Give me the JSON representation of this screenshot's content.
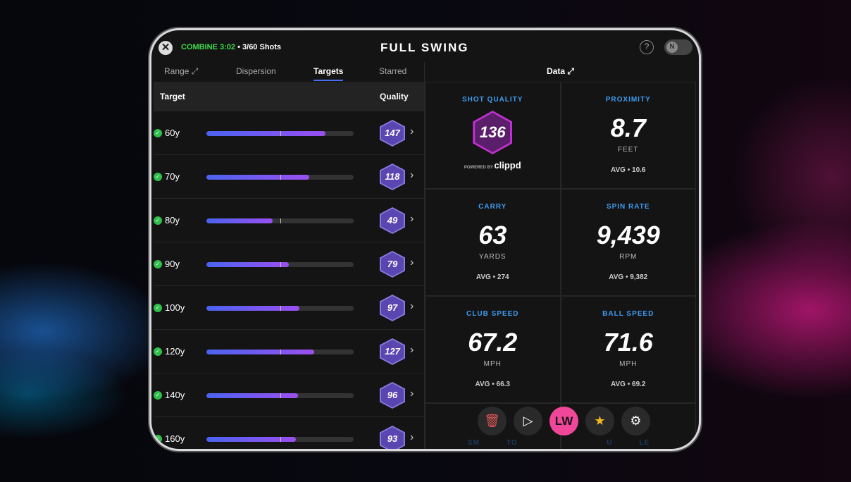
{
  "header": {
    "combine_label": "COMBINE",
    "timer": "3:02",
    "shots": "• 3/60 Shots",
    "logo": "FULL SWING",
    "help": "?",
    "toggle": "N"
  },
  "tabs": [
    {
      "label": "Range ⤢"
    },
    {
      "label": "Dispersion"
    },
    {
      "label": "Targets"
    },
    {
      "label": "Starred"
    }
  ],
  "table": {
    "col_target": "Target",
    "col_quality": "Quality",
    "rows": [
      {
        "target": "60y",
        "progress": 0.81,
        "quality": "147"
      },
      {
        "target": "70y",
        "progress": 0.7,
        "quality": "118"
      },
      {
        "target": "80y",
        "progress": 0.45,
        "quality": "49"
      },
      {
        "target": "90y",
        "progress": 0.56,
        "quality": "79"
      },
      {
        "target": "100y",
        "progress": 0.63,
        "quality": "97"
      },
      {
        "target": "120y",
        "progress": 0.73,
        "quality": "127"
      },
      {
        "target": "140y",
        "progress": 0.62,
        "quality": "96"
      },
      {
        "target": "160y",
        "progress": 0.61,
        "quality": "93"
      }
    ]
  },
  "data_panel": {
    "title": "Data ⤢",
    "shot_quality": {
      "label": "SHOT QUALITY",
      "value": "136",
      "powered": "POWERED BY",
      "brand": "clippd"
    },
    "metrics": [
      {
        "label": "PROXIMITY",
        "value": "8.7",
        "unit": "FEET",
        "avg": "AVG • 10.6"
      },
      {
        "label": "CARRY",
        "value": "63",
        "unit": "YARDS",
        "avg": "AVG • 274"
      },
      {
        "label": "SPIN RATE",
        "value": "9,439",
        "unit": "RPM",
        "avg": "AVG • 9,382"
      },
      {
        "label": "CLUB SPEED",
        "value": "67.2",
        "unit": "MPH",
        "avg": "AVG • 66.3"
      },
      {
        "label": "BALL SPEED",
        "value": "71.6",
        "unit": "MPH",
        "avg": "AVG • 69.2"
      }
    ],
    "hidden_left": "SM          TO",
    "hidden_right": "U          LE"
  },
  "actions": {
    "club": "LW"
  },
  "colors": {
    "accent": "#3f9cf0",
    "combine": "#3ddc4a",
    "club": "#f0479a"
  }
}
